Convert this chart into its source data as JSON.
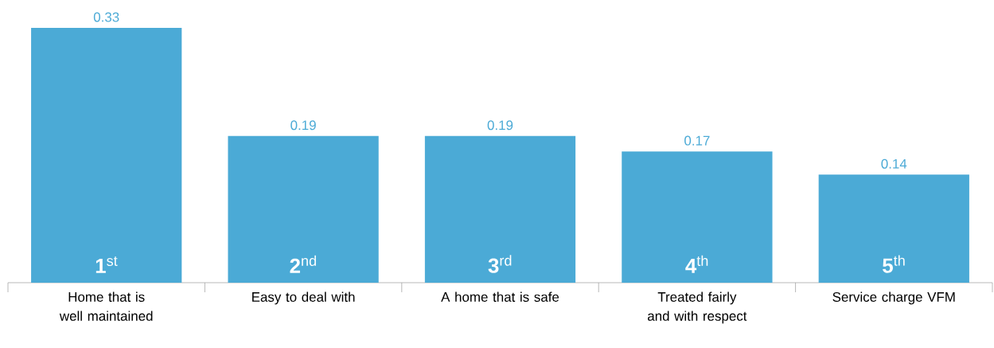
{
  "chart_data": {
    "type": "bar",
    "categories": [
      "Home that is well maintained",
      "Easy to deal with",
      "A home that is safe",
      "Treated fairly and with respect",
      "Service charge VFM"
    ],
    "values": [
      0.33,
      0.19,
      0.19,
      0.17,
      0.14
    ],
    "color": "#4baad6",
    "data_labels": true,
    "annotations": [
      "**1**$^{st}$",
      "**2**$^{nd}$",
      "**3**$^{rd}$",
      "**4**$^{th}$",
      "**5**$^{th}$"
    ]
  }
}
